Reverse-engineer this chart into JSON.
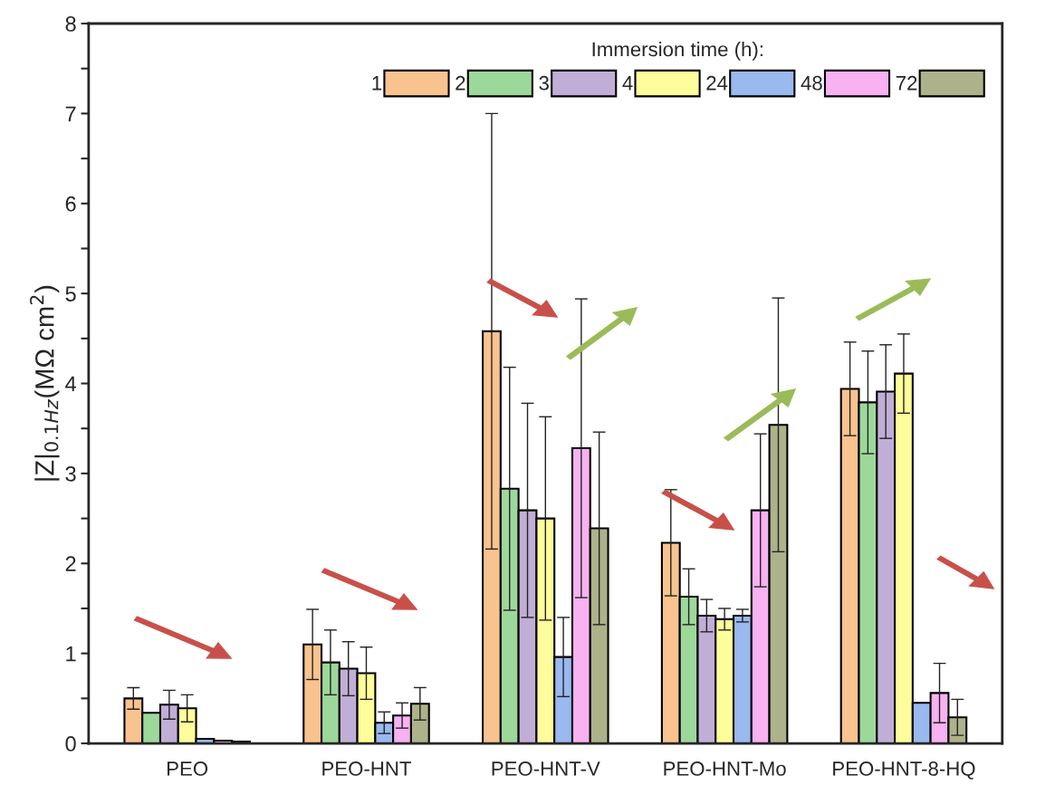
{
  "chart_data": {
    "type": "bar",
    "ylabel": "|Z|$_{0.1Hz}$(MΩ cm$^{2}$)",
    "legend_title": "Immersion time (h):",
    "categories": [
      "PEO",
      "PEO-HNT",
      "PEO-HNT-V",
      "PEO-HNT-Mo",
      "PEO-HNT-8-HQ"
    ],
    "series": [
      {
        "name": "1",
        "color": "#f9c38f",
        "values": [
          0.5,
          1.1,
          4.58,
          2.23,
          3.94
        ],
        "errors": [
          0.12,
          0.39,
          2.42,
          0.59,
          0.52
        ]
      },
      {
        "name": "2",
        "color": "#9dd89b",
        "values": [
          0.34,
          0.9,
          2.83,
          1.63,
          3.79
        ],
        "errors": [
          null,
          0.36,
          1.35,
          0.31,
          0.57
        ]
      },
      {
        "name": "3",
        "color": "#c1aed6",
        "values": [
          0.43,
          0.83,
          2.59,
          1.42,
          3.91
        ],
        "errors": [
          0.16,
          0.3,
          1.19,
          0.18,
          0.52
        ]
      },
      {
        "name": "4",
        "color": "#fdfd9b",
        "values": [
          0.39,
          0.78,
          2.5,
          1.38,
          4.11
        ],
        "errors": [
          0.15,
          0.29,
          1.13,
          0.12,
          0.44
        ]
      },
      {
        "name": "24",
        "color": "#99b9ef",
        "values": [
          0.05,
          0.23,
          0.96,
          1.42,
          0.45
        ],
        "errors": [
          null,
          0.12,
          0.44,
          0.07,
          null
        ]
      },
      {
        "name": "48",
        "color": "#f8b1f1",
        "values": [
          0.03,
          0.31,
          3.28,
          2.59,
          0.56
        ],
        "errors": [
          null,
          0.14,
          1.66,
          0.85,
          0.33
        ]
      },
      {
        "name": "72",
        "color": "#aeb28a",
        "values": [
          0.02,
          0.44,
          2.39,
          3.54,
          0.29
        ],
        "errors": [
          null,
          0.18,
          1.07,
          1.41,
          0.2
        ]
      }
    ],
    "ylim": [
      0,
      8
    ],
    "yticks": [
      0,
      {
        "value": 0.5,
        "label": null
      },
      1,
      {
        "value": 1.5,
        "label": null
      },
      2,
      {
        "value": 2.5,
        "label": null
      },
      3,
      {
        "value": 3.5,
        "label": null
      },
      4,
      {
        "value": 4.5,
        "label": null
      },
      5,
      {
        "value": 5.5,
        "label": null
      },
      6,
      {
        "value": 6.5,
        "label": null
      },
      7,
      {
        "value": 7.5,
        "label": null
      },
      8
    ],
    "grid": false,
    "legend": "top right"
  }
}
